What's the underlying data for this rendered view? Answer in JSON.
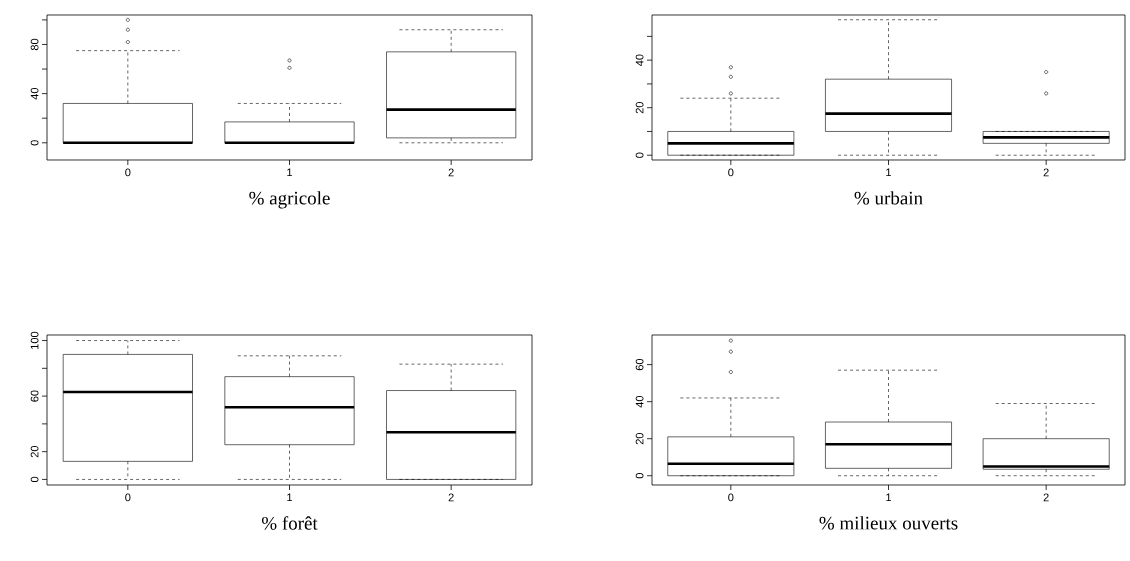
{
  "chart_data": [
    {
      "type": "box",
      "xlabel": "% agricole",
      "categories": [
        "0",
        "1",
        "2"
      ],
      "marker": "circle",
      "ylim": [
        -14,
        104
      ],
      "yticks": [
        0,
        {
          "value": 20,
          "label": null
        },
        40,
        {
          "value": 60,
          "label": null
        },
        80,
        {
          "value": 100,
          "label": null
        }
      ],
      "boxes": [
        {
          "low": 0,
          "q1": 0,
          "median": 0,
          "q3": 32,
          "high": 75,
          "outliers": [
            82,
            92,
            100
          ]
        },
        {
          "low": 0,
          "q1": 0,
          "median": 0,
          "q3": 17,
          "high": 32,
          "outliers": [
            61,
            67
          ]
        },
        {
          "low": 0,
          "q1": 4,
          "median": 27,
          "q3": 74,
          "high": 92
        }
      ]
    },
    {
      "type": "box",
      "xlabel": "% urbain",
      "categories": [
        "0",
        "1",
        "2"
      ],
      "marker": "circle",
      "ylim": [
        -2,
        59
      ],
      "yticks": [
        0,
        {
          "value": 10,
          "label": null
        },
        20,
        {
          "value": 30,
          "label": null
        },
        40,
        {
          "value": 50,
          "label": null
        }
      ],
      "boxes": [
        {
          "low": 0,
          "q1": 0,
          "median": 5,
          "q3": 10,
          "high": 24,
          "outliers": [
            26,
            33,
            37
          ]
        },
        {
          "low": 0,
          "q1": 10,
          "median": 17.5,
          "q3": 32,
          "high": 57
        },
        {
          "low": 0,
          "q1": 5,
          "median": 7.5,
          "q3": 10,
          "high": 10,
          "outliers": [
            26,
            35
          ]
        }
      ]
    },
    {
      "type": "box",
      "xlabel": "% forêt",
      "categories": [
        "0",
        "1",
        "2"
      ],
      "ylim": [
        -4,
        104
      ],
      "yticks": [
        0,
        20,
        {
          "value": 40,
          "label": null
        },
        60,
        {
          "value": 80,
          "label": null
        },
        100
      ],
      "boxes": [
        {
          "low": 0,
          "q1": 13,
          "median": 63,
          "q3": 90,
          "high": 100
        },
        {
          "low": 0,
          "q1": 25,
          "median": 52,
          "q3": 74,
          "high": 89
        },
        {
          "low": 0,
          "q1": 0,
          "median": 34,
          "q3": 64,
          "high": 83
        }
      ]
    },
    {
      "type": "box",
      "xlabel": "% milieux ouverts",
      "categories": [
        "0",
        "1",
        "2"
      ],
      "marker": "circle",
      "ylim": [
        -5,
        76
      ],
      "yticks": [
        0,
        20,
        40,
        60
      ],
      "boxes": [
        {
          "low": 0,
          "q1": 0,
          "median": 6.5,
          "q3": 21,
          "high": 42,
          "outliers": [
            56,
            67,
            73
          ]
        },
        {
          "low": 0,
          "q1": 4,
          "median": 17,
          "q3": 29,
          "high": 57
        },
        {
          "low": 0,
          "q1": 3.5,
          "median": 5,
          "q3": 20,
          "high": 39
        }
      ]
    }
  ]
}
